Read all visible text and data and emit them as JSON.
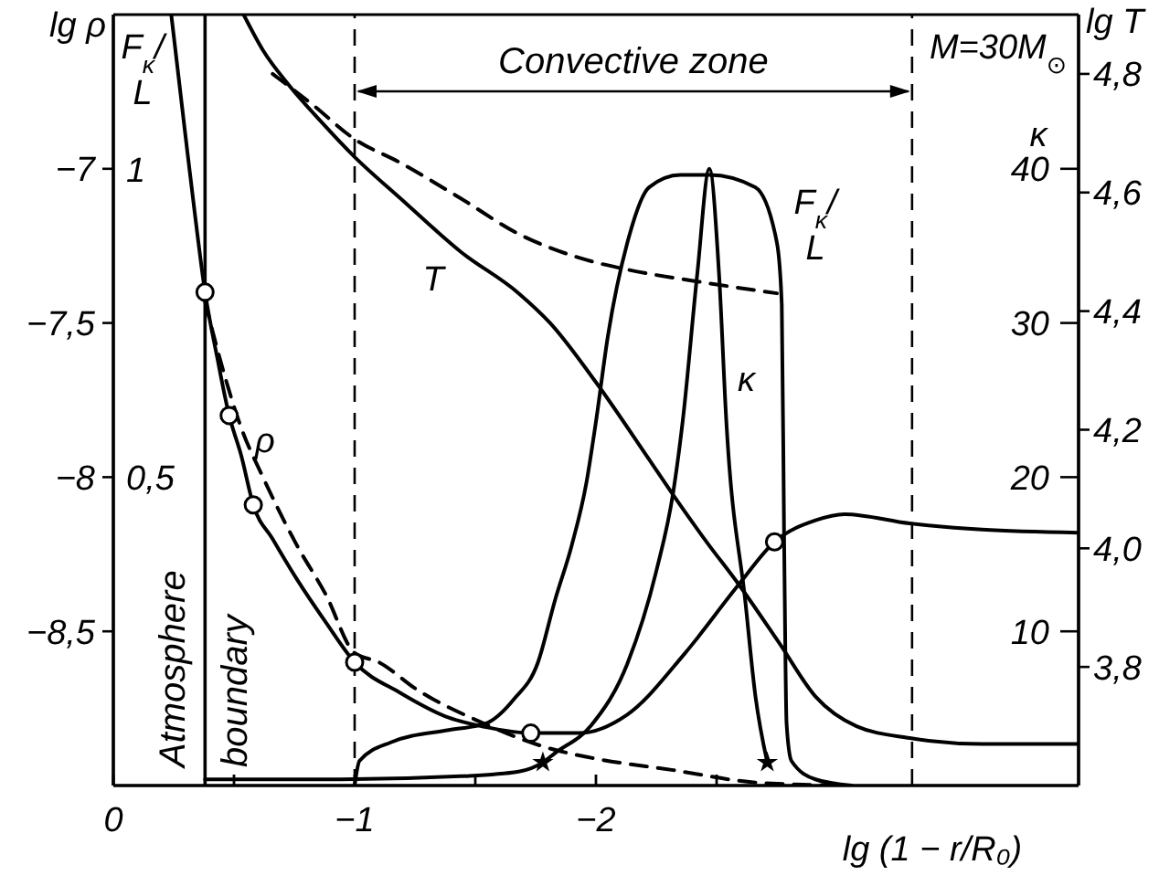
{
  "chart_data": [
    {
      "type": "line",
      "xlabel": "lg (1 − r/R₀)",
      "ylabel": "lg ρ",
      "y2label": "lg T",
      "y3label": "F$_{κ}$/L",
      "xlim": [
        0,
        -4
      ],
      "xticks": [
        0,
        {
          "value": -0.5,
          "label": null
        },
        {
          "value": -1,
          "label": "−1"
        },
        {
          "value": -1.5,
          "label": null
        },
        {
          "value": -2,
          "label": "−2"
        },
        {
          "value": -2.5,
          "label": null
        }
      ],
      "ylim": [
        -9,
        -6.5
      ],
      "yticks": [
        {
          "value": -7,
          "label": "−7"
        },
        {
          "value": -7.5,
          "label": "−7,5"
        },
        {
          "value": -8,
          "label": "−8"
        },
        {
          "value": -8.5,
          "label": "−8,5"
        }
      ],
      "y2lim": [
        3.6,
        4.9
      ],
      "y2ticks": [
        {
          "value": 3.8,
          "label": "3,8"
        },
        {
          "value": 4,
          "label": "4,0"
        },
        {
          "value": 4.2,
          "label": "4,2"
        },
        {
          "value": 4.4,
          "label": "4,4"
        },
        {
          "value": 4.6,
          "label": "4,6"
        },
        {
          "value": 4.8,
          "label": "4,8"
        }
      ],
      "y3lim": [
        0,
        1.25
      ],
      "y3ticks": [
        {
          "value": 0.5,
          "label": "0,5"
        },
        1
      ],
      "series": [
        {
          "name": "T",
          "axis": "y2",
          "color": "#000000",
          "x": [
            -0.54,
            -0.62,
            -0.73,
            -0.86,
            -1.0,
            -1.19,
            -1.44,
            -1.68,
            -1.81,
            -2.0,
            -2.22,
            -2.32,
            -2.46,
            -2.59,
            -2.76,
            -2.91,
            -3.08,
            -3.3,
            -3.6,
            -4.0
          ],
          "values": [
            4.9,
            4.84,
            4.78,
            4.72,
            4.66,
            4.59,
            4.5,
            4.43,
            4.38,
            4.28,
            4.15,
            4.09,
            4.01,
            3.94,
            3.84,
            3.75,
            3.7,
            3.68,
            3.67,
            3.67
          ]
        },
        {
          "axis": "y2",
          "line_style": "dashed",
          "color": "#000000",
          "x": [
            -0.66,
            -0.82,
            -1.0,
            -1.19,
            -1.44,
            -1.68,
            -1.93,
            -2.13,
            -2.42,
            -2.75
          ],
          "values": [
            4.8,
            4.75,
            4.69,
            4.65,
            4.59,
            4.53,
            4.49,
            4.47,
            4.45,
            4.43
          ]
        },
        {
          "name": "ρ",
          "color": "#000000",
          "x": [
            -0.24,
            -0.3,
            -0.34,
            -0.38,
            -0.43,
            -0.48,
            -0.53,
            -0.58,
            -0.66,
            -0.76,
            -0.88,
            -1.0,
            -1.19,
            -1.39,
            -1.54,
            -1.73,
            -1.93,
            -2.13,
            -2.37,
            -2.59,
            -2.74,
            -2.91,
            -3.03,
            -3.3,
            -3.6,
            -4.0
          ],
          "values": [
            -6.5,
            -6.9,
            -7.16,
            -7.4,
            -7.61,
            -7.8,
            -7.93,
            -8.09,
            -8.2,
            -8.33,
            -8.47,
            -8.6,
            -8.7,
            -8.78,
            -8.81,
            -8.83,
            -8.83,
            -8.77,
            -8.57,
            -8.35,
            -8.21,
            -8.14,
            -8.12,
            -8.15,
            -8.17,
            -8.18
          ]
        },
        {
          "line_style": "dashed",
          "color": "#000000",
          "x": [
            -0.38,
            -0.45,
            -0.53,
            -0.62,
            -0.76,
            -0.88,
            -1.0,
            -1.1,
            -1.26,
            -1.51,
            -1.81,
            -1.98,
            -2.32,
            -2.66,
            -3.01
          ],
          "values": [
            -7.43,
            -7.64,
            -7.84,
            -8.0,
            -8.22,
            -8.38,
            -8.57,
            -8.6,
            -8.69,
            -8.79,
            -8.88,
            -8.91,
            -8.95,
            -8.99,
            -9.0
          ]
        },
        {
          "name": "F$_{κ}$/L",
          "axis": "y3",
          "color": "#000000",
          "x": [
            -1.0,
            -1.02,
            -1.15,
            -1.39,
            -1.54,
            -1.66,
            -1.76,
            -1.83,
            -1.9,
            -1.96,
            -2.0,
            -2.05,
            -2.13,
            -2.22,
            -2.35,
            -2.47,
            -2.66,
            -2.75,
            -2.77,
            -2.78,
            -2.79,
            -2.81,
            -2.91,
            -3.06
          ],
          "values": [
            0,
            0.04,
            0.07,
            0.09,
            0.1,
            0.14,
            0.2,
            0.3,
            0.39,
            0.49,
            0.59,
            0.73,
            0.88,
            0.97,
            0.99,
            0.99,
            0.97,
            0.88,
            0.78,
            0.39,
            0.1,
            0.04,
            0.01,
            0
          ]
        },
        {
          "type": "scatter",
          "marker": "circle",
          "color": "#000000",
          "x": [
            -0.38,
            -0.48,
            -0.58,
            -1.0,
            -1.73,
            -2.74
          ],
          "values": [
            -7.4,
            -7.8,
            -8.09,
            -8.6,
            -8.83,
            -8.21
          ]
        }
      ],
      "ref_lines": [
        {
          "axis": "x",
          "value": -0.38,
          "label": "Atmosphere boundary",
          "line_style": "solid"
        },
        {
          "axis": "x",
          "value": -1,
          "line_style": "dashed"
        },
        {
          "axis": "x",
          "value": -3.31,
          "line_style": "dashed"
        }
      ],
      "annotations": [
        "Convective zone",
        "M=30M$_{⊙}$"
      ]
    },
    {
      "type": "line",
      "ylabel": "κ",
      "tick_labels": "y",
      "xlim": [
        0,
        -4
      ],
      "ylim": [
        0,
        50
      ],
      "yticks": [
        10,
        20,
        30,
        40
      ],
      "series": [
        {
          "name": "κ",
          "color": "#000000",
          "x": [
            -0.38,
            -0.94,
            -1.44,
            -1.68,
            -1.78,
            -1.83,
            -1.98,
            -2.13,
            -2.25,
            -2.32,
            -2.36,
            -2.42,
            -2.47,
            -2.51,
            -2.54,
            -2.62,
            -2.66,
            -2.71
          ],
          "values": [
            0.4,
            0.4,
            0.6,
            0.9,
            1.5,
            2.1,
            3.9,
            7.9,
            13.9,
            19.0,
            23.7,
            33.2,
            40.0,
            33.2,
            23.7,
            11.8,
            5.9,
            1.5
          ]
        },
        {
          "type": "scatter",
          "marker": "star",
          "color": "#000000",
          "x": [
            -1.78,
            -2.71
          ],
          "values": [
            1.5,
            1.5
          ]
        }
      ]
    }
  ]
}
